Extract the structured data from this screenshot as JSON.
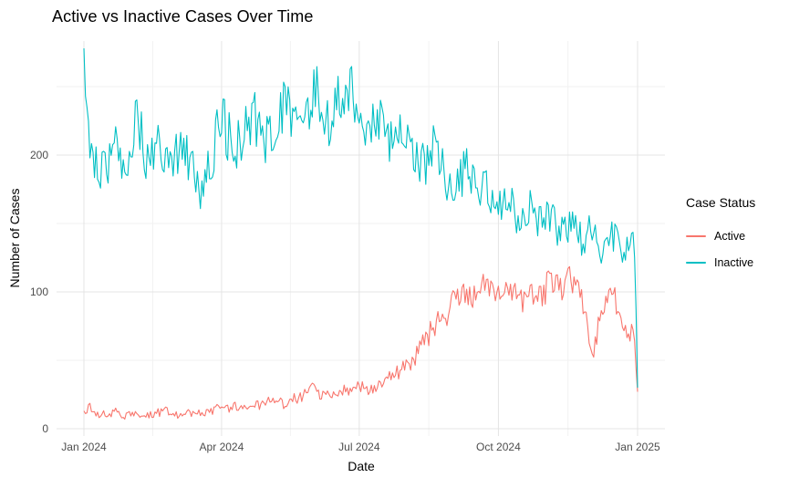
{
  "chart_data": {
    "type": "line",
    "title": "Active vs Inactive Cases Over Time",
    "xlabel": "Date",
    "ylabel": "Number of Cases",
    "legend": {
      "title": "Case Status",
      "position": "right"
    },
    "background_color": "#ffffff",
    "gridline_major_color": "#e4e4e4",
    "gridline_minor_color": "#f2f2f2",
    "tick_label_color": "#4d4d4d",
    "text_color": "#000000",
    "grid": true,
    "x_axis": {
      "start": "Jan 2024",
      "end": "Jan 2025",
      "total_days": 366,
      "ticks": [
        {
          "label": "Jan 2024",
          "day": 0
        },
        {
          "label": "Apr 2024",
          "day": 91
        },
        {
          "label": "Jul 2024",
          "day": 182
        },
        {
          "label": "Oct 2024",
          "day": 274
        },
        {
          "label": "Jan 2025",
          "day": 366
        }
      ],
      "minor_days": [
        45.5,
        136.5,
        228,
        320
      ]
    },
    "y_axis": {
      "ticks": [
        0,
        100,
        200
      ],
      "minor": [
        50,
        150,
        250
      ],
      "range": [
        -6,
        284
      ]
    },
    "sampling_note": "daily observations; values jitter randomly around the trend anchors below",
    "noise_seed": 20240101,
    "series": [
      {
        "name": "Active",
        "color": "#F8766D",
        "seed": 11,
        "noise_base": 2,
        "noise_frac": 0.1,
        "anchor_days": [
          0,
          4,
          7,
          14,
          21,
          28,
          35,
          42,
          49,
          56,
          63,
          70,
          77,
          84,
          91,
          98,
          105,
          112,
          119,
          126,
          133,
          140,
          147,
          151,
          154,
          161,
          168,
          175,
          182,
          189,
          196,
          203,
          210,
          217,
          224,
          231,
          238,
          245,
          252,
          259,
          266,
          273,
          280,
          287,
          294,
          301,
          308,
          315,
          322,
          329,
          336,
          343,
          350,
          357,
          364,
          366
        ],
        "anchor_values": [
          13,
          16,
          12,
          10,
          13,
          9,
          12,
          10,
          12,
          13,
          10,
          12,
          11,
          13,
          16,
          15,
          18,
          16,
          19,
          20,
          18,
          22,
          25,
          38,
          26,
          24,
          27,
          28,
          31,
          29,
          34,
          38,
          42,
          50,
          62,
          73,
          83,
          92,
          99,
          95,
          104,
          97,
          106,
          93,
          101,
          95,
          106,
          99,
          109,
          96,
          55,
          86,
          96,
          77,
          66,
          27
        ]
      },
      {
        "name": "Inactive",
        "color": "#00BFC4",
        "seed": 23,
        "noise_base": 2,
        "noise_frac": 0.085,
        "anchor_days": [
          0,
          2,
          7,
          14,
          21,
          28,
          35,
          42,
          49,
          56,
          63,
          70,
          77,
          84,
          91,
          98,
          105,
          112,
          119,
          126,
          133,
          140,
          147,
          154,
          161,
          168,
          175,
          182,
          189,
          196,
          203,
          210,
          217,
          224,
          231,
          238,
          245,
          252,
          259,
          266,
          273,
          280,
          287,
          294,
          301,
          308,
          315,
          322,
          329,
          336,
          343,
          350,
          357,
          364,
          366
        ],
        "anchor_values": [
          278,
          215,
          198,
          186,
          208,
          194,
          228,
          196,
          206,
          186,
          201,
          196,
          168,
          198,
          228,
          206,
          214,
          233,
          210,
          224,
          239,
          221,
          234,
          244,
          226,
          239,
          254,
          231,
          226,
          234,
          212,
          221,
          201,
          192,
          206,
          186,
          176,
          190,
          171,
          181,
          162,
          168,
          152,
          162,
          148,
          154,
          140,
          150,
          136,
          146,
          126,
          140,
          131,
          133,
          30
        ]
      }
    ]
  }
}
